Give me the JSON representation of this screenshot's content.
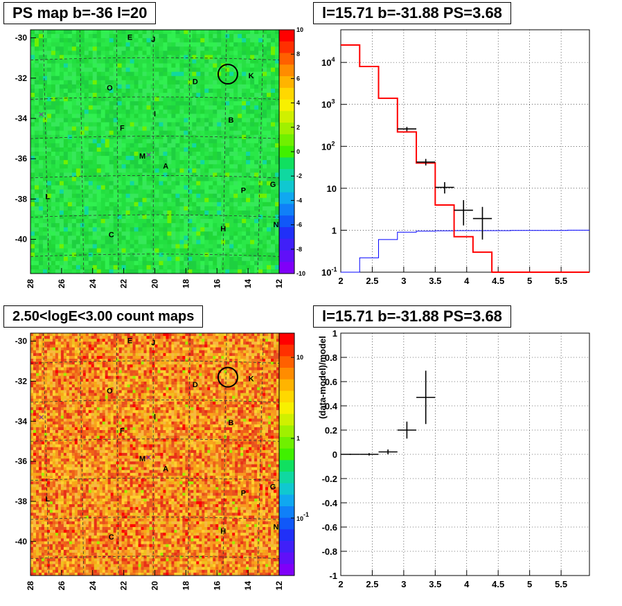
{
  "panels": {
    "map_title": "PS map b=-36 l=20",
    "spectrum_title": "l=15.71 b=-31.88 PS=3.68",
    "count_title": "2.50<logE<3.00 count maps",
    "residual_title": "l=15.71 b=-31.88 PS=3.68"
  },
  "chart_data": [
    {
      "type": "heatmap",
      "name": "ps-map",
      "title": "PS map b=-36 l=20",
      "x_ticks": [
        "28",
        "26",
        "24",
        "22",
        "20",
        "18",
        "16",
        "14",
        "12"
      ],
      "y_ticks": [
        "-30",
        "-32",
        "-34",
        "-36",
        "-38",
        "-40"
      ],
      "xlim": [
        28,
        12
      ],
      "ylim": [
        -41.7,
        -29.6
      ],
      "colorbar_ticks": [
        "10",
        "8",
        "6",
        "4",
        "2",
        "0",
        "-2",
        "-4",
        "-6",
        "-8",
        "-10"
      ],
      "colorbar_range": [
        -10,
        10
      ],
      "dominant_color": "#22e040",
      "source_labels": [
        {
          "label": "E",
          "l": 21.6,
          "b": -30.1
        },
        {
          "label": "J",
          "l": 20.1,
          "b": -30.2
        },
        {
          "label": "K",
          "l": 13.8,
          "b": -32.0
        },
        {
          "label": "D",
          "l": 17.4,
          "b": -32.3
        },
        {
          "label": "O",
          "l": 22.9,
          "b": -32.6
        },
        {
          "label": "I",
          "l": 20.0,
          "b": -33.9
        },
        {
          "label": "B",
          "l": 15.1,
          "b": -34.2
        },
        {
          "label": "F",
          "l": 22.1,
          "b": -34.6
        },
        {
          "label": "M",
          "l": 20.8,
          "b": -36.0
        },
        {
          "label": "A",
          "l": 19.3,
          "b": -36.5
        },
        {
          "label": "P",
          "l": 14.3,
          "b": -37.7
        },
        {
          "label": "G",
          "l": 12.4,
          "b": -37.4
        },
        {
          "label": "L",
          "l": 26.9,
          "b": -38.0
        },
        {
          "label": "N",
          "l": 12.2,
          "b": -39.4
        },
        {
          "label": "H",
          "l": 15.6,
          "b": -39.6
        },
        {
          "label": "C",
          "l": 22.8,
          "b": -39.9
        }
      ],
      "crosses": [
        {
          "l": 27.3,
          "b": -33.8
        },
        {
          "l": 20.4,
          "b": -35.8
        }
      ],
      "circle": {
        "l": 15.3,
        "b": -31.8
      }
    },
    {
      "type": "line",
      "name": "spectrum",
      "title": "l=15.71 b=-31.88 PS=3.68",
      "log_y": true,
      "xlim": [
        2,
        5.95
      ],
      "ylim": [
        0.1,
        60000
      ],
      "x_ticks": [
        "2",
        "2.5",
        "3",
        "3.5",
        "4",
        "4.5",
        "5",
        "5.5"
      ],
      "y_ticks": [
        "10^-1",
        "1",
        "10",
        "10^2",
        "10^3",
        "10^4"
      ],
      "grid": true,
      "model_red": {
        "edges": [
          2.0,
          2.3,
          2.6,
          2.9,
          3.2,
          3.5,
          3.8,
          4.1,
          4.4,
          4.7,
          5.0,
          5.3,
          5.6,
          5.95
        ],
        "values": [
          26000,
          8000,
          1400,
          220,
          40,
          4,
          0.7,
          0.3,
          0.1,
          0.1,
          0.1,
          0.1,
          0.1
        ]
      },
      "model_blue": {
        "edges": [
          2.0,
          2.3,
          2.6,
          2.9,
          3.2,
          3.5,
          3.8,
          4.1,
          4.4,
          4.7,
          5.0,
          5.3,
          5.6,
          5.95
        ],
        "values": [
          0.1,
          0.22,
          0.6,
          0.9,
          0.95,
          0.97,
          0.98,
          0.98,
          0.98,
          0.99,
          0.99,
          0.99,
          1.0
        ]
      },
      "data_points": [
        {
          "x": 3.05,
          "y": 260,
          "xerr": 0.15,
          "ylo": 230,
          "yhi": 290
        },
        {
          "x": 3.35,
          "y": 42,
          "xerr": 0.15,
          "ylo": 35,
          "yhi": 50
        },
        {
          "x": 3.65,
          "y": 10.5,
          "xerr": 0.15,
          "ylo": 7.5,
          "yhi": 14
        },
        {
          "x": 3.95,
          "y": 3.0,
          "xerr": 0.15,
          "ylo": 1.3,
          "yhi": 5.2
        },
        {
          "x": 4.25,
          "y": 1.9,
          "xerr": 0.15,
          "ylo": 0.6,
          "yhi": 3.6
        }
      ]
    },
    {
      "type": "heatmap",
      "name": "count-map",
      "title": "2.50<logE<3.00 count maps",
      "x_ticks": [
        "28",
        "26",
        "24",
        "22",
        "20",
        "18",
        "16",
        "14",
        "12"
      ],
      "y_ticks": [
        "-30",
        "-32",
        "-34",
        "-36",
        "-38",
        "-40"
      ],
      "xlim": [
        28,
        12
      ],
      "ylim": [
        -41.7,
        -29.6
      ],
      "colorbar_ticks": [
        "10",
        "1",
        "10^-1"
      ],
      "colorbar_log": true,
      "dominant_color": "#f07a20",
      "same_source_labels_as": "ps-map"
    },
    {
      "type": "scatter",
      "name": "residual",
      "title": "l=15.71 b=-31.88 PS=3.68",
      "ylabel": "(data-model)/model",
      "xlim": [
        2,
        5.95
      ],
      "ylim": [
        -1,
        1
      ],
      "x_ticks": [
        "2",
        "2.5",
        "3",
        "3.5",
        "4",
        "4.5",
        "5",
        "5.5"
      ],
      "y_ticks": [
        "-1",
        "-0.8",
        "-0.6",
        "-0.4",
        "-0.2",
        "0",
        "0.2",
        "0.4",
        "0.6",
        "0.8",
        "1"
      ],
      "grid": true,
      "data_points": [
        {
          "x": 2.15,
          "y": 0.0,
          "xerr": 0.15,
          "yerr": 0.005
        },
        {
          "x": 2.45,
          "y": 0.0,
          "xerr": 0.15,
          "yerr": 0.01
        },
        {
          "x": 2.75,
          "y": 0.02,
          "xerr": 0.15,
          "yerr": 0.02
        },
        {
          "x": 3.05,
          "y": 0.2,
          "xerr": 0.15,
          "yerr": 0.07
        },
        {
          "x": 3.35,
          "y": 0.47,
          "xerr": 0.15,
          "yerr": 0.22
        }
      ]
    }
  ],
  "colors": {
    "model_red": "#ff0000",
    "model_blue": "#0000ff",
    "grid_line": "#000000"
  }
}
